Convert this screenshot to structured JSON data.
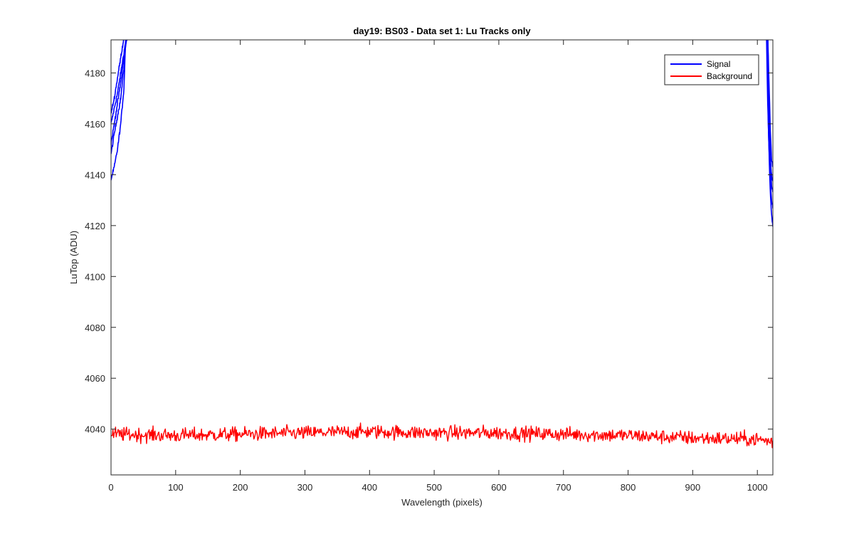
{
  "chart_data": {
    "type": "line",
    "title": "day19: BS03 - Data set 1: Lu Tracks only",
    "xlabel": "Wavelength (pixels)",
    "ylabel": "LuTop (ADU)",
    "xlim": [
      0,
      1024
    ],
    "ylim": [
      4022,
      4193
    ],
    "xticks": [
      0,
      100,
      200,
      300,
      400,
      500,
      600,
      700,
      800,
      900,
      1000
    ],
    "yticks": [
      4040,
      4060,
      4080,
      4100,
      4120,
      4140,
      4160,
      4180
    ],
    "grid": false,
    "legend_position": "top-right",
    "legend": [
      "Signal",
      "Background"
    ],
    "colors": {
      "Signal": "#0000ff",
      "Background": "#ff0000"
    },
    "series": [
      {
        "name": "Signal",
        "role": "signal",
        "color": "#0000ff",
        "tracks": [
          {
            "left": [
              [
                0,
                4160
              ],
              [
                5,
                4166
              ],
              [
                10,
                4172
              ],
              [
                15,
                4180
              ],
              [
                20,
                4188
              ],
              [
                25,
                4196
              ]
            ],
            "right": [
              [
                1014,
                4196
              ],
              [
                1016,
                4168
              ],
              [
                1018,
                4150
              ],
              [
                1020,
                4138
              ],
              [
                1022,
                4130
              ],
              [
                1024,
                4127
              ]
            ]
          },
          {
            "left": [
              [
                0,
                4148
              ],
              [
                5,
                4156
              ],
              [
                10,
                4163
              ],
              [
                15,
                4170
              ],
              [
                20,
                4182
              ],
              [
                24,
                4196
              ]
            ],
            "right": [
              [
                1015,
                4196
              ],
              [
                1017,
                4160
              ],
              [
                1019,
                4140
              ],
              [
                1021,
                4128
              ],
              [
                1023,
                4121
              ],
              [
                1024,
                4120
              ]
            ]
          },
          {
            "left": [
              [
                0,
                4138
              ],
              [
                5,
                4143
              ],
              [
                10,
                4150
              ],
              [
                15,
                4160
              ],
              [
                20,
                4174
              ],
              [
                23,
                4196
              ]
            ],
            "right": [
              [
                1016,
                4196
              ],
              [
                1018,
                4165
              ],
              [
                1020,
                4147
              ],
              [
                1022,
                4136
              ],
              [
                1024,
                4133
              ]
            ]
          },
          {
            "left": [
              [
                0,
                4152
              ],
              [
                5,
                4160
              ],
              [
                10,
                4168
              ],
              [
                15,
                4176
              ],
              [
                20,
                4186
              ],
              [
                26,
                4196
              ]
            ],
            "right": [
              [
                1015,
                4196
              ],
              [
                1017,
                4172
              ],
              [
                1019,
                4154
              ],
              [
                1021,
                4142
              ],
              [
                1023,
                4138
              ],
              [
                1024,
                4138
              ]
            ]
          },
          {
            "left": [
              [
                0,
                4164
              ],
              [
                5,
                4170
              ],
              [
                10,
                4178
              ],
              [
                15,
                4186
              ],
              [
                20,
                4194
              ],
              [
                22,
                4196
              ]
            ],
            "right": [
              [
                1016,
                4196
              ],
              [
                1018,
                4176
              ],
              [
                1020,
                4158
              ],
              [
                1022,
                4146
              ],
              [
                1024,
                4143
              ]
            ]
          }
        ]
      },
      {
        "name": "Background",
        "role": "background",
        "color": "#ff0000",
        "trend": [
          [
            0,
            4038
          ],
          [
            100,
            4037.5
          ],
          [
            200,
            4038
          ],
          [
            300,
            4038.5
          ],
          [
            400,
            4039
          ],
          [
            500,
            4038.5
          ],
          [
            600,
            4038.5
          ],
          [
            700,
            4038
          ],
          [
            800,
            4037.5
          ],
          [
            900,
            4036.5
          ],
          [
            1000,
            4036
          ],
          [
            1024,
            4035
          ]
        ],
        "noise_amplitude": 2
      }
    ]
  }
}
